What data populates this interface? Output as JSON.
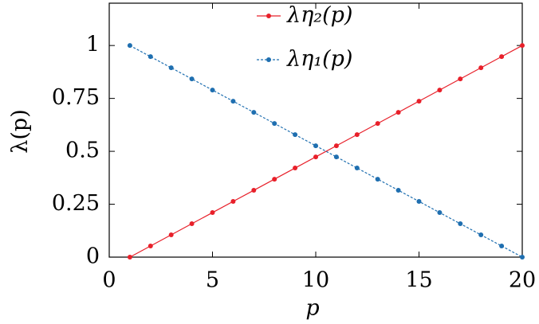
{
  "chart_data": {
    "type": "line",
    "xlabel": "p",
    "ylabel": "λ(p)",
    "xlim": [
      0,
      20
    ],
    "ylim": [
      0,
      1.2
    ],
    "xticks": [
      0,
      5,
      10,
      15,
      20
    ],
    "yticks": [
      0,
      0.25,
      0.5,
      0.75,
      1
    ],
    "x": [
      1,
      2,
      3,
      4,
      5,
      6,
      7,
      8,
      9,
      10,
      11,
      12,
      13,
      14,
      15,
      16,
      17,
      18,
      19,
      20
    ],
    "series": [
      {
        "name": "λη₂(p)",
        "color": "#e8202a",
        "dashed": false,
        "values": [
          0,
          0.0526,
          0.1053,
          0.1579,
          0.2105,
          0.2632,
          0.3158,
          0.3684,
          0.4211,
          0.4737,
          0.5263,
          0.5789,
          0.6316,
          0.6842,
          0.7368,
          0.7895,
          0.8421,
          0.8947,
          0.9474,
          1
        ]
      },
      {
        "name": "λη₁(p)",
        "color": "#1f6fb0",
        "dashed": true,
        "values": [
          1,
          0.9474,
          0.8947,
          0.8421,
          0.7895,
          0.7368,
          0.6842,
          0.6316,
          0.5789,
          0.5263,
          0.4737,
          0.4211,
          0.3684,
          0.3158,
          0.2632,
          0.2105,
          0.1579,
          0.1053,
          0.0526,
          0
        ]
      }
    ]
  }
}
